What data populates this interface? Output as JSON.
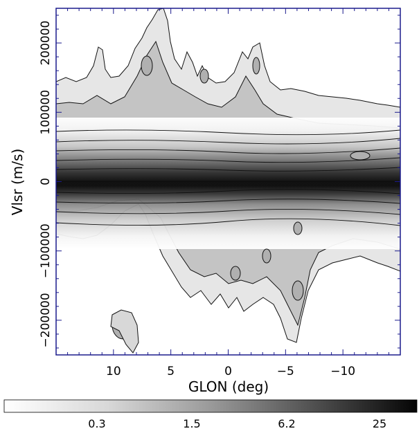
{
  "chart_data": {
    "type": "heatmap",
    "subtype": "position-velocity contour map (grayscale intensity with contours)",
    "xlabel": "GLON (deg)",
    "ylabel": "Vlsr (m/s)",
    "xlim": [
      15,
      -15
    ],
    "ylim": [
      -250000,
      250000
    ],
    "x_ticks": [
      10,
      5,
      0,
      -5,
      -10
    ],
    "x_tick_labels": [
      "10",
      "5",
      "0",
      "−5",
      "−10"
    ],
    "y_ticks": [
      200000,
      100000,
      0,
      -100000,
      -200000
    ],
    "y_tick_labels": [
      "200000",
      "100000",
      "0",
      "−100000",
      "−200000"
    ],
    "x_axis_reversed": true,
    "colormap": "grayscale (white = low, black = high)",
    "colorbar": {
      "orientation": "horizontal",
      "tick_labels": [
        "0.3",
        "1.5",
        "6.2",
        "25"
      ]
    },
    "colors": {
      "frame": "#1a1a8c",
      "background": "#ffffff",
      "peak": "#0a0a0a"
    }
  }
}
